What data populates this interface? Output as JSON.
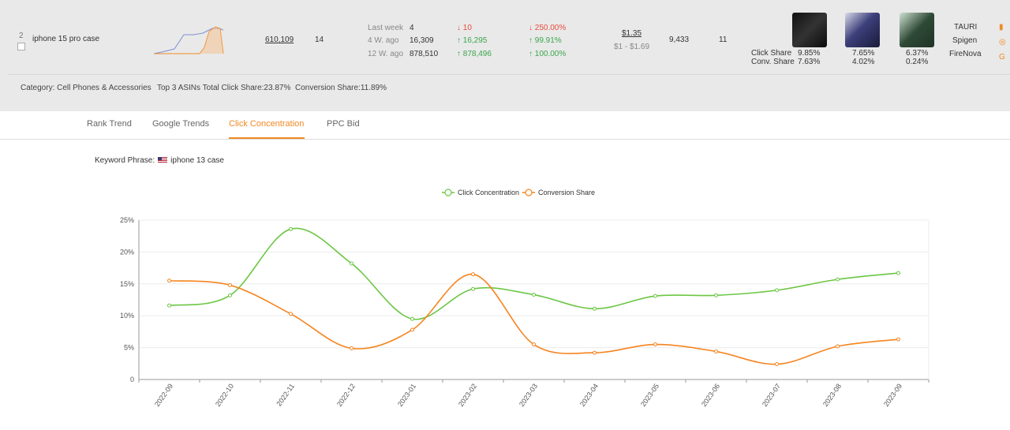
{
  "row": {
    "rank": "2",
    "keyword": "iphone 15 pro case",
    "search_volume": "610,109",
    "count": "14",
    "last_week_label": "Last week",
    "last_week_val": "4",
    "w4_label": "4 W. ago",
    "w4_val": "16,309",
    "w12_label": "12 W. ago",
    "w12_val": "878,510",
    "ch1": "↓ 10",
    "ch2": "↑ 16,295",
    "ch3": "↑ 878,496",
    "pct1": "↓ 250.00%",
    "pct2": "↑ 99.91%",
    "pct3": "↑ 100.00%",
    "price": "$1.35",
    "price_range": "$1 - $1.69",
    "col9": "9,433",
    "col10": "11",
    "click_share_label": "Click Share",
    "conv_share_label": "Conv. Share",
    "p1_click": "9.85%",
    "p1_conv": "7.63%",
    "p2_click": "7.65%",
    "p2_conv": "4.02%",
    "p3_click": "6.37%",
    "p3_conv": "0.24%",
    "brand1": "TAURI",
    "brand2": "Spigen",
    "brand3": "FireNova"
  },
  "summary": {
    "category": "Category: Cell Phones & Accessories",
    "top3": "Top 3 ASINs Total Click Share:23.87%",
    "conversion": "Conversion Share:11.89%"
  },
  "tabs": [
    "Rank Trend",
    "Google Trends",
    "Click Concentration",
    "PPC Bid"
  ],
  "active_tab": "Click Concentration",
  "keyword_phrase_label": "Keyword Phrase:",
  "keyword_phrase": "iphone 13 case",
  "colors": {
    "accent": "#f08a24",
    "green": "#6cc644",
    "orange": "#f5841f"
  },
  "chart_data": {
    "type": "line",
    "x": [
      "2022-09",
      "2022-10",
      "2022-11",
      "2022-12",
      "2023-01",
      "2023-02",
      "2023-03",
      "2023-04",
      "2023-05",
      "2023-06",
      "2023-07",
      "2023-08",
      "2023-09"
    ],
    "ylim": [
      0,
      25
    ],
    "yticks": [
      "0",
      "5%",
      "10%",
      "15%",
      "20%",
      "25%"
    ],
    "series": [
      {
        "name": "Click Concentration",
        "color": "#6cc644",
        "values": [
          11.6,
          13.2,
          23.6,
          18.2,
          9.5,
          14.2,
          13.3,
          11.1,
          13.1,
          13.2,
          14.0,
          15.7,
          16.7
        ]
      },
      {
        "name": "Conversion Share",
        "color": "#f5841f",
        "values": [
          15.5,
          14.8,
          10.3,
          4.9,
          7.8,
          16.5,
          5.5,
          4.2,
          5.5,
          4.4,
          2.4,
          5.2,
          6.3
        ]
      }
    ],
    "legend": "top-center",
    "grid": true
  }
}
